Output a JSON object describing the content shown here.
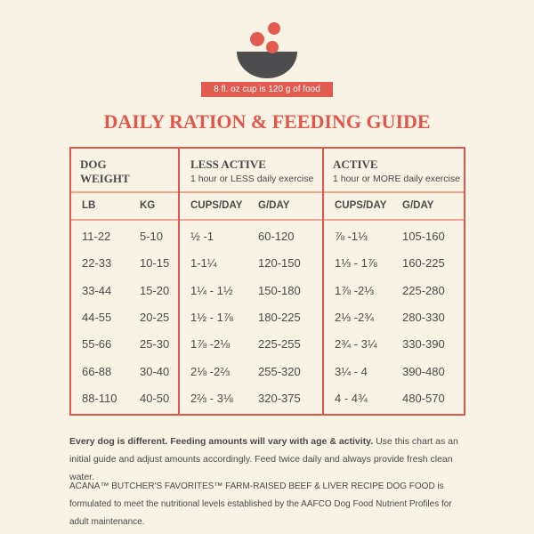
{
  "banner": "8 fl. oz cup is 120 g of food",
  "title": "DAILY RATION & FEEDING GUIDE",
  "table": {
    "groups": [
      {
        "title": "DOG WEIGHT"
      },
      {
        "title": "LESS ACTIVE",
        "subtitle": "1 hour or LESS daily exercise"
      },
      {
        "title": "ACTIVE",
        "subtitle": "1 hour or MORE daily exercise"
      }
    ],
    "columns": [
      "LB",
      "KG",
      "CUPS/DAY",
      "G/DAY",
      "CUPS/DAY",
      "G/DAY"
    ],
    "rows": [
      [
        "11-22",
        "5-10",
        "½ -1",
        "60-120",
        "⅞ -1⅓",
        "105-160"
      ],
      [
        "22-33",
        "10-15",
        "1-1¼",
        "120-150",
        "1⅓ - 1⅞",
        "160-225"
      ],
      [
        "33-44",
        "15-20",
        "1¼ - 1½",
        "150-180",
        "1⅞ -2⅓",
        "225-280"
      ],
      [
        "44-55",
        "20-25",
        "1½ - 1⅞",
        "180-225",
        "2⅓ -2¾",
        "280-330"
      ],
      [
        "55-66",
        "25-30",
        "1⅞ -2⅛",
        "225-255",
        "2¾ - 3¼",
        "330-390"
      ],
      [
        "66-88",
        "30-40",
        "2⅛ -2⅔",
        "255-320",
        "3¼ - 4",
        "390-480"
      ],
      [
        "88-110",
        "40-50",
        "2⅔ - 3⅛",
        "320-375",
        "4 - 4¾",
        "480-570"
      ]
    ]
  },
  "footer": {
    "note_bold": "Every dog is different. Feeding amounts will vary with age & activity.",
    "note": "Use this chart as an initial guide and adjust amounts accordingly. Feed twice daily and always provide fresh clean water.",
    "disclaimer": "ACANA™ BUTCHER'S FAVORITES™ FARM-RAISED BEEF & LIVER RECIPE DOG FOOD is formulated to meet the nutritional levels established by the AAFCO Dog Food Nutrient Profiles for adult maintenance."
  }
}
